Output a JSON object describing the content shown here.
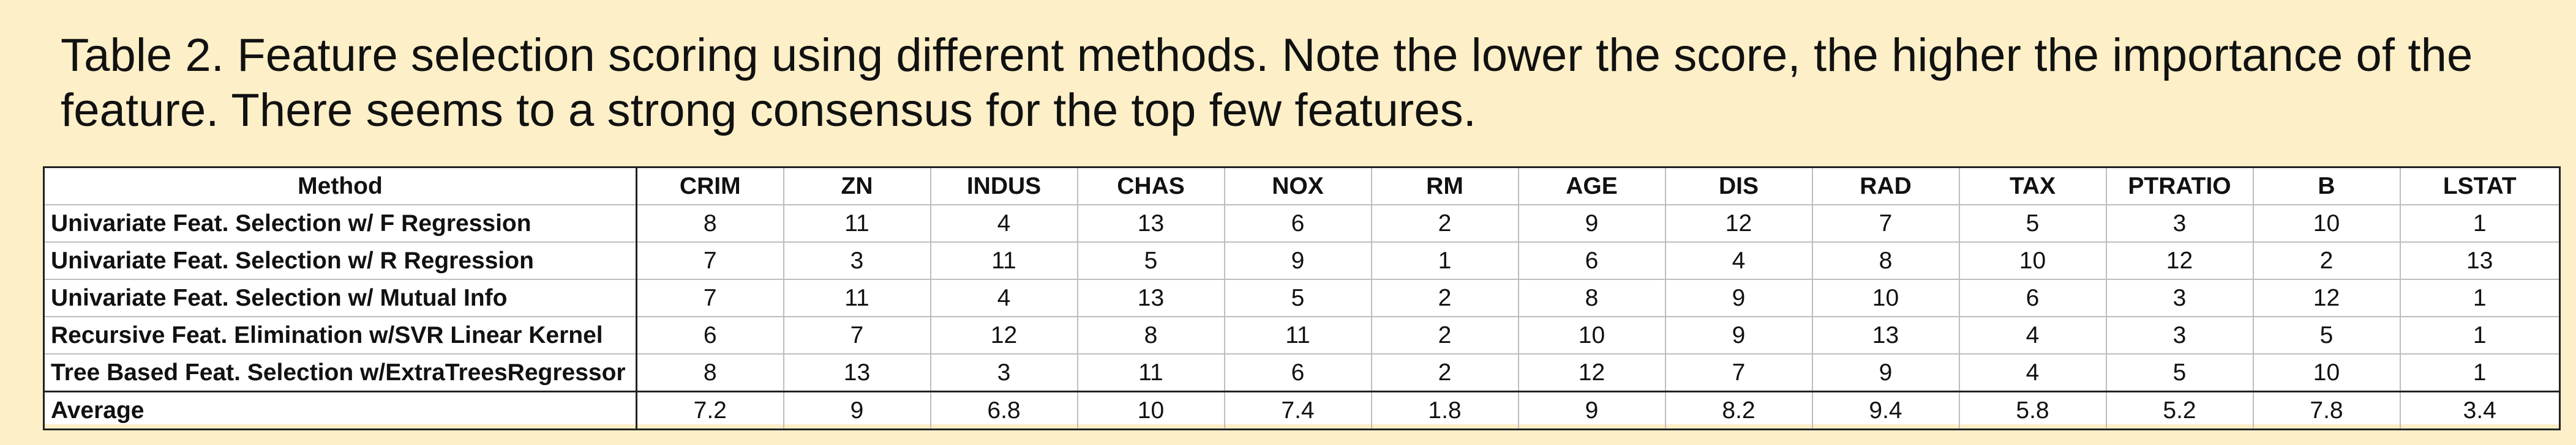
{
  "caption": {
    "line1": "Table 2. Feature selection scoring using different methods. Note the lower the score, the higher the importance of the",
    "line2": "feature. There seems to a strong consensus for the top few features."
  },
  "table": {
    "headers": [
      "Method",
      "CRIM",
      "ZN",
      "INDUS",
      "CHAS",
      "NOX",
      "RM",
      "AGE",
      "DIS",
      "RAD",
      "TAX",
      "PTRATIO",
      "B",
      "LSTAT"
    ],
    "rows": [
      {
        "method": "Univariate Feat. Selection w/ F Regression",
        "values": [
          "8",
          "11",
          "4",
          "13",
          "6",
          "2",
          "9",
          "12",
          "7",
          "5",
          "3",
          "10",
          "1"
        ]
      },
      {
        "method": "Univariate Feat. Selection w/ R Regression",
        "values": [
          "7",
          "3",
          "11",
          "5",
          "9",
          "1",
          "6",
          "4",
          "8",
          "10",
          "12",
          "2",
          "13"
        ]
      },
      {
        "method": "Univariate Feat. Selection w/ Mutual Info",
        "values": [
          "7",
          "11",
          "4",
          "13",
          "5",
          "2",
          "8",
          "9",
          "10",
          "6",
          "3",
          "12",
          "1"
        ]
      },
      {
        "method": "Recursive Feat. Elimination w/SVR Linear Kernel",
        "values": [
          "6",
          "7",
          "12",
          "8",
          "11",
          "2",
          "10",
          "9",
          "13",
          "4",
          "3",
          "5",
          "1"
        ]
      },
      {
        "method": "Tree Based Feat. Selection w/ExtraTreesRegressor",
        "values": [
          "8",
          "13",
          "3",
          "11",
          "6",
          "2",
          "12",
          "7",
          "9",
          "4",
          "5",
          "10",
          "1"
        ]
      },
      {
        "method": "Average",
        "values": [
          "7.2",
          "9",
          "6.8",
          "10",
          "7.4",
          "1.8",
          "9",
          "8.2",
          "9.4",
          "5.8",
          "5.2",
          "7.8",
          "3.4"
        ]
      }
    ]
  }
}
